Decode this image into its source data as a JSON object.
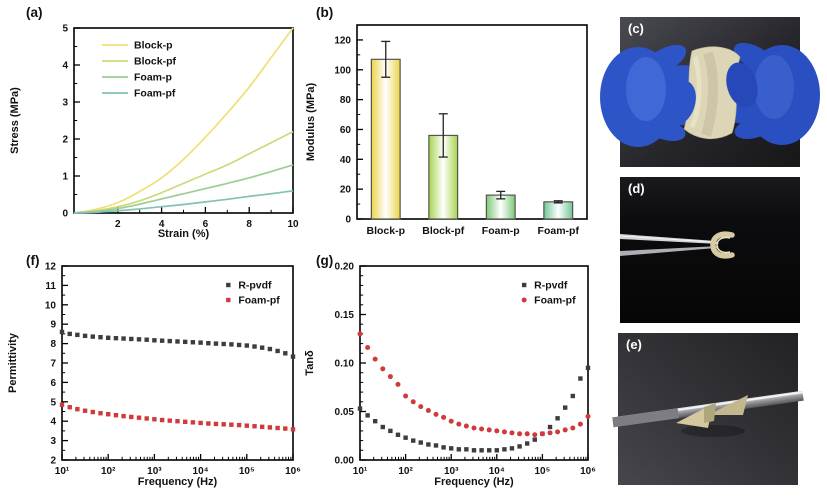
{
  "accent_colors": {
    "black_series": "#3d3d3d",
    "red_series": "#d03a3c",
    "axis": "#000000"
  },
  "photos": [
    {
      "label": "(c)"
    },
    {
      "label": "(d)"
    },
    {
      "label": "(e)"
    }
  ],
  "chart_data": [
    {
      "panel_label": "(a)",
      "type": "line",
      "title": "",
      "xlabel": "Strain (%)",
      "ylabel": "Stress (MPa)",
      "xlim": [
        0,
        10
      ],
      "ylim": [
        0,
        5
      ],
      "xticks": [
        2,
        4,
        6,
        8,
        10
      ],
      "yticks": [
        0,
        1,
        2,
        3,
        4,
        5
      ],
      "legend_position": "top-left",
      "x": [
        0,
        1,
        2,
        3,
        4,
        5,
        6,
        7,
        8,
        9,
        10
      ],
      "series": [
        {
          "name": "Block-p",
          "color": "#efe074",
          "values": [
            0,
            0.1,
            0.28,
            0.58,
            0.95,
            1.45,
            2.05,
            2.7,
            3.4,
            4.2,
            5.0
          ]
        },
        {
          "name": "Block-pf",
          "color": "#cdd97a",
          "values": [
            0,
            0.06,
            0.17,
            0.33,
            0.55,
            0.8,
            1.05,
            1.3,
            1.6,
            1.9,
            2.2
          ]
        },
        {
          "name": "Foam-p",
          "color": "#9bcf92",
          "values": [
            0,
            0.04,
            0.12,
            0.24,
            0.38,
            0.52,
            0.66,
            0.8,
            0.95,
            1.12,
            1.3
          ]
        },
        {
          "name": "Foam-pf",
          "color": "#82c2b4",
          "values": [
            0,
            0.02,
            0.06,
            0.11,
            0.17,
            0.23,
            0.3,
            0.37,
            0.45,
            0.52,
            0.6
          ]
        }
      ]
    },
    {
      "panel_label": "(b)",
      "type": "bar",
      "title": "",
      "xlabel": "",
      "ylabel": "Modulus (MPa)",
      "ylim": [
        0,
        130
      ],
      "yticks": [
        0,
        20,
        40,
        60,
        80,
        100,
        120
      ],
      "categories": [
        "Block-p",
        "Block-pf",
        "Foam-p",
        "Foam-pf"
      ],
      "values": [
        107,
        56,
        16,
        11.5
      ],
      "errors": [
        12,
        14.5,
        2.5,
        0.7
      ],
      "bar_colors": [
        "#e9d54a",
        "#a7d44f",
        "#7cc87c",
        "#70c693"
      ]
    },
    {
      "panel_label": "(f)",
      "type": "scatter-log",
      "title": "",
      "xlabel": "Frequency (Hz)",
      "ylabel": "Permittivity",
      "xlim_exp": [
        1,
        6
      ],
      "xtick_labels": [
        "10¹",
        "10²",
        "10³",
        "10⁴",
        "10⁵",
        "10⁶"
      ],
      "ylim": [
        2,
        12
      ],
      "yticks": [
        2,
        3,
        4,
        5,
        6,
        7,
        8,
        9,
        10,
        11,
        12
      ],
      "y_minor_divisions": 2,
      "legend_position": "top-right",
      "x": [
        10,
        14.7,
        21.5,
        31.6,
        46.4,
        68.1,
        100,
        147,
        215,
        316,
        464,
        681,
        1000,
        1470,
        2150,
        3160,
        4640,
        6810,
        10000,
        14700,
        21500,
        31600,
        46400,
        68100,
        100000,
        147000,
        215000,
        316000,
        464000,
        681000,
        1000000
      ],
      "series": [
        {
          "name": "R-pvdf",
          "color": "#3d3d3d",
          "marker": "square",
          "values": [
            8.6,
            8.5,
            8.45,
            8.4,
            8.36,
            8.33,
            8.3,
            8.28,
            8.26,
            8.24,
            8.22,
            8.2,
            8.17,
            8.15,
            8.13,
            8.11,
            8.09,
            8.07,
            8.05,
            8.02,
            8.0,
            7.98,
            7.96,
            7.93,
            7.9,
            7.85,
            7.79,
            7.72,
            7.62,
            7.5,
            7.33
          ]
        },
        {
          "name": "Foam-pf",
          "color": "#d03a3c",
          "marker": "square",
          "values": [
            4.85,
            4.72,
            4.62,
            4.54,
            4.47,
            4.41,
            4.36,
            4.31,
            4.26,
            4.22,
            4.18,
            4.14,
            4.1,
            4.06,
            4.03,
            4.0,
            3.97,
            3.94,
            3.91,
            3.88,
            3.86,
            3.84,
            3.82,
            3.8,
            3.77,
            3.74,
            3.71,
            3.68,
            3.65,
            3.62,
            3.58
          ]
        }
      ]
    },
    {
      "panel_label": "(g)",
      "type": "scatter-log",
      "title": "",
      "xlabel": "Frequency (Hz)",
      "ylabel": "Tanδ",
      "xlim_exp": [
        1,
        6
      ],
      "xtick_labels": [
        "10¹",
        "10²",
        "10³",
        "10⁴",
        "10⁵",
        "10⁶"
      ],
      "ylim": [
        0,
        0.2
      ],
      "yticks": [
        0,
        0.05,
        0.1,
        0.15,
        0.2
      ],
      "ytick_labels": [
        "0.00",
        "0.05",
        "0.10",
        "0.15",
        "0.20"
      ],
      "y_minor_divisions": 5,
      "legend_position": "top-right",
      "x": [
        10,
        14.7,
        21.5,
        31.6,
        46.4,
        68.1,
        100,
        147,
        215,
        316,
        464,
        681,
        1000,
        1470,
        2150,
        3160,
        4640,
        6810,
        10000,
        14700,
        21500,
        31600,
        46400,
        68100,
        100000,
        147000,
        215000,
        316000,
        464000,
        681000,
        1000000
      ],
      "series": [
        {
          "name": "R-pvdf",
          "color": "#3d3d3d",
          "marker": "square",
          "values": [
            0.053,
            0.046,
            0.04,
            0.034,
            0.03,
            0.026,
            0.023,
            0.02,
            0.018,
            0.016,
            0.015,
            0.013,
            0.012,
            0.011,
            0.011,
            0.01,
            0.01,
            0.01,
            0.01,
            0.011,
            0.012,
            0.014,
            0.017,
            0.021,
            0.027,
            0.034,
            0.043,
            0.054,
            0.066,
            0.084,
            0.095
          ]
        },
        {
          "name": "Foam-pf",
          "color": "#d03a3c",
          "marker": "circle",
          "values": [
            0.13,
            0.116,
            0.104,
            0.094,
            0.086,
            0.078,
            0.066,
            0.06,
            0.055,
            0.051,
            0.047,
            0.044,
            0.04,
            0.037,
            0.035,
            0.033,
            0.032,
            0.031,
            0.03,
            0.029,
            0.028,
            0.027,
            0.027,
            0.026,
            0.027,
            0.028,
            0.029,
            0.031,
            0.033,
            0.037,
            0.045
          ]
        }
      ]
    }
  ]
}
